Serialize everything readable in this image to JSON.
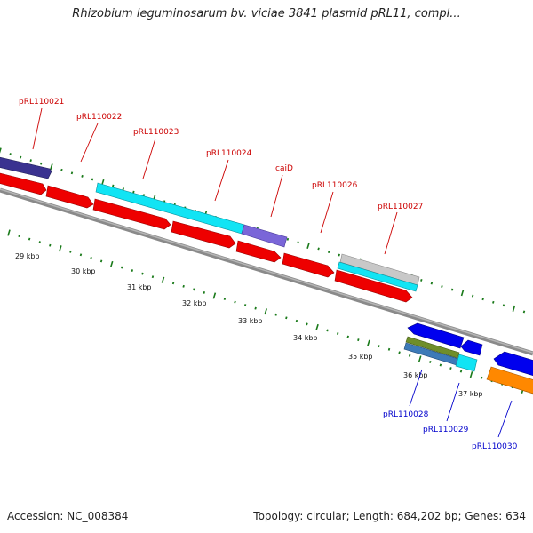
{
  "title": "Rhizobium leguminosarum bv. viciae 3841 plasmid pRL11, compl...",
  "accession": "Accession: NC_008384",
  "topology": "Topology: circular; Length: 684,202 bp; Genes: 634",
  "colors": {
    "red": "#ee0000",
    "cyan": "#11e4f4",
    "navy": "#3a3290",
    "purple": "#7a66d8",
    "silver": "#c8c8c8",
    "blue": "#0000ee",
    "olive": "#6f8e2a",
    "steel": "#3d7ab8",
    "orange": "#ff8800",
    "tick_green": "#1a7a1a",
    "label_red": "#cc0000",
    "label_blue": "#0000cc",
    "axis_gray": "#888888"
  },
  "kbp_labels": [
    "29 kbp",
    "30 kbp",
    "31 kbp",
    "32 kbp",
    "33 kbp",
    "34 kbp",
    "35 kbp",
    "36 kbp",
    "37 kbp"
  ],
  "gene_labels_forward": [
    "pRL110021",
    "pRL110022",
    "pRL110023",
    "pRL110024",
    "caiD",
    "pRL110026",
    "pRL110027"
  ],
  "gene_labels_reverse": [
    "pRL110028",
    "pRL110029",
    "pRL110030"
  ]
}
